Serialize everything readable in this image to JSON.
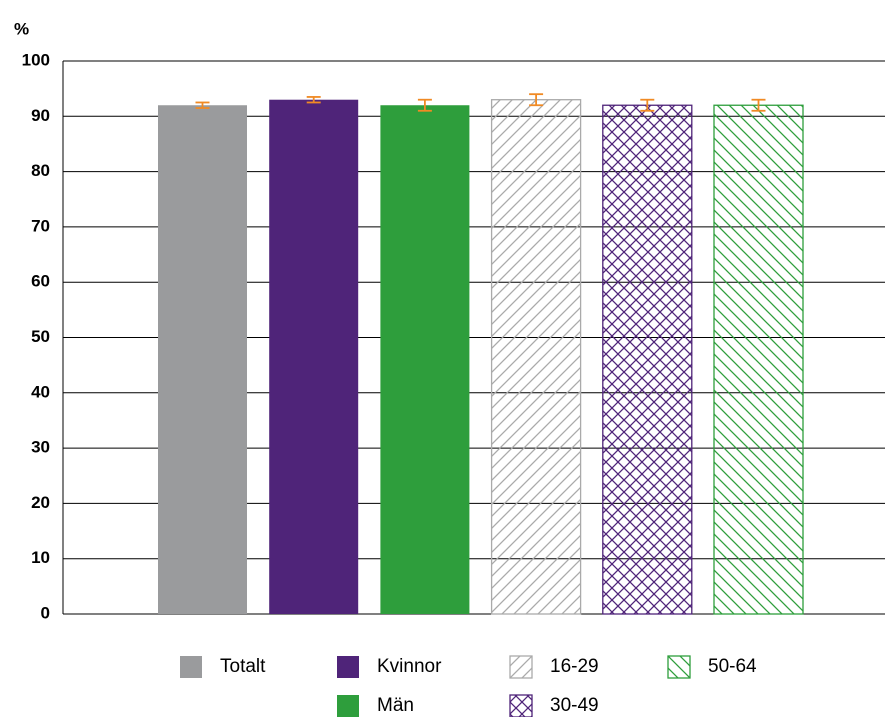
{
  "chart_data": {
    "type": "bar",
    "y_label": "%",
    "categories": [
      null
    ],
    "series": [
      {
        "name": "Totalt",
        "color": "#9a9b9d",
        "pattern": "solid",
        "values": [
          92
        ],
        "errors": [
          0.5
        ]
      },
      {
        "name": "Kvinnor",
        "color": "#4f2479",
        "pattern": "solid",
        "values": [
          93
        ],
        "errors": [
          0.5
        ]
      },
      {
        "name": "Män",
        "color": "#2e9e3c",
        "pattern": "solid",
        "values": [
          92
        ],
        "errors": [
          1
        ]
      },
      {
        "name": "16-29",
        "color": "#aaaaaa",
        "pattern": "forward",
        "values": [
          93
        ],
        "errors": [
          1
        ]
      },
      {
        "name": "30-49",
        "color": "#4f2479",
        "pattern": "cross",
        "values": [
          92
        ],
        "errors": [
          1
        ]
      },
      {
        "name": "50-64",
        "color": "#2e9e3c",
        "pattern": "back",
        "values": [
          92
        ],
        "errors": [
          1
        ]
      }
    ],
    "error_color": "#f08a24",
    "ylim": [
      0,
      100
    ],
    "yticks": [
      0,
      10,
      20,
      30,
      40,
      50,
      60,
      70,
      80,
      90,
      100
    ],
    "grid": true
  }
}
